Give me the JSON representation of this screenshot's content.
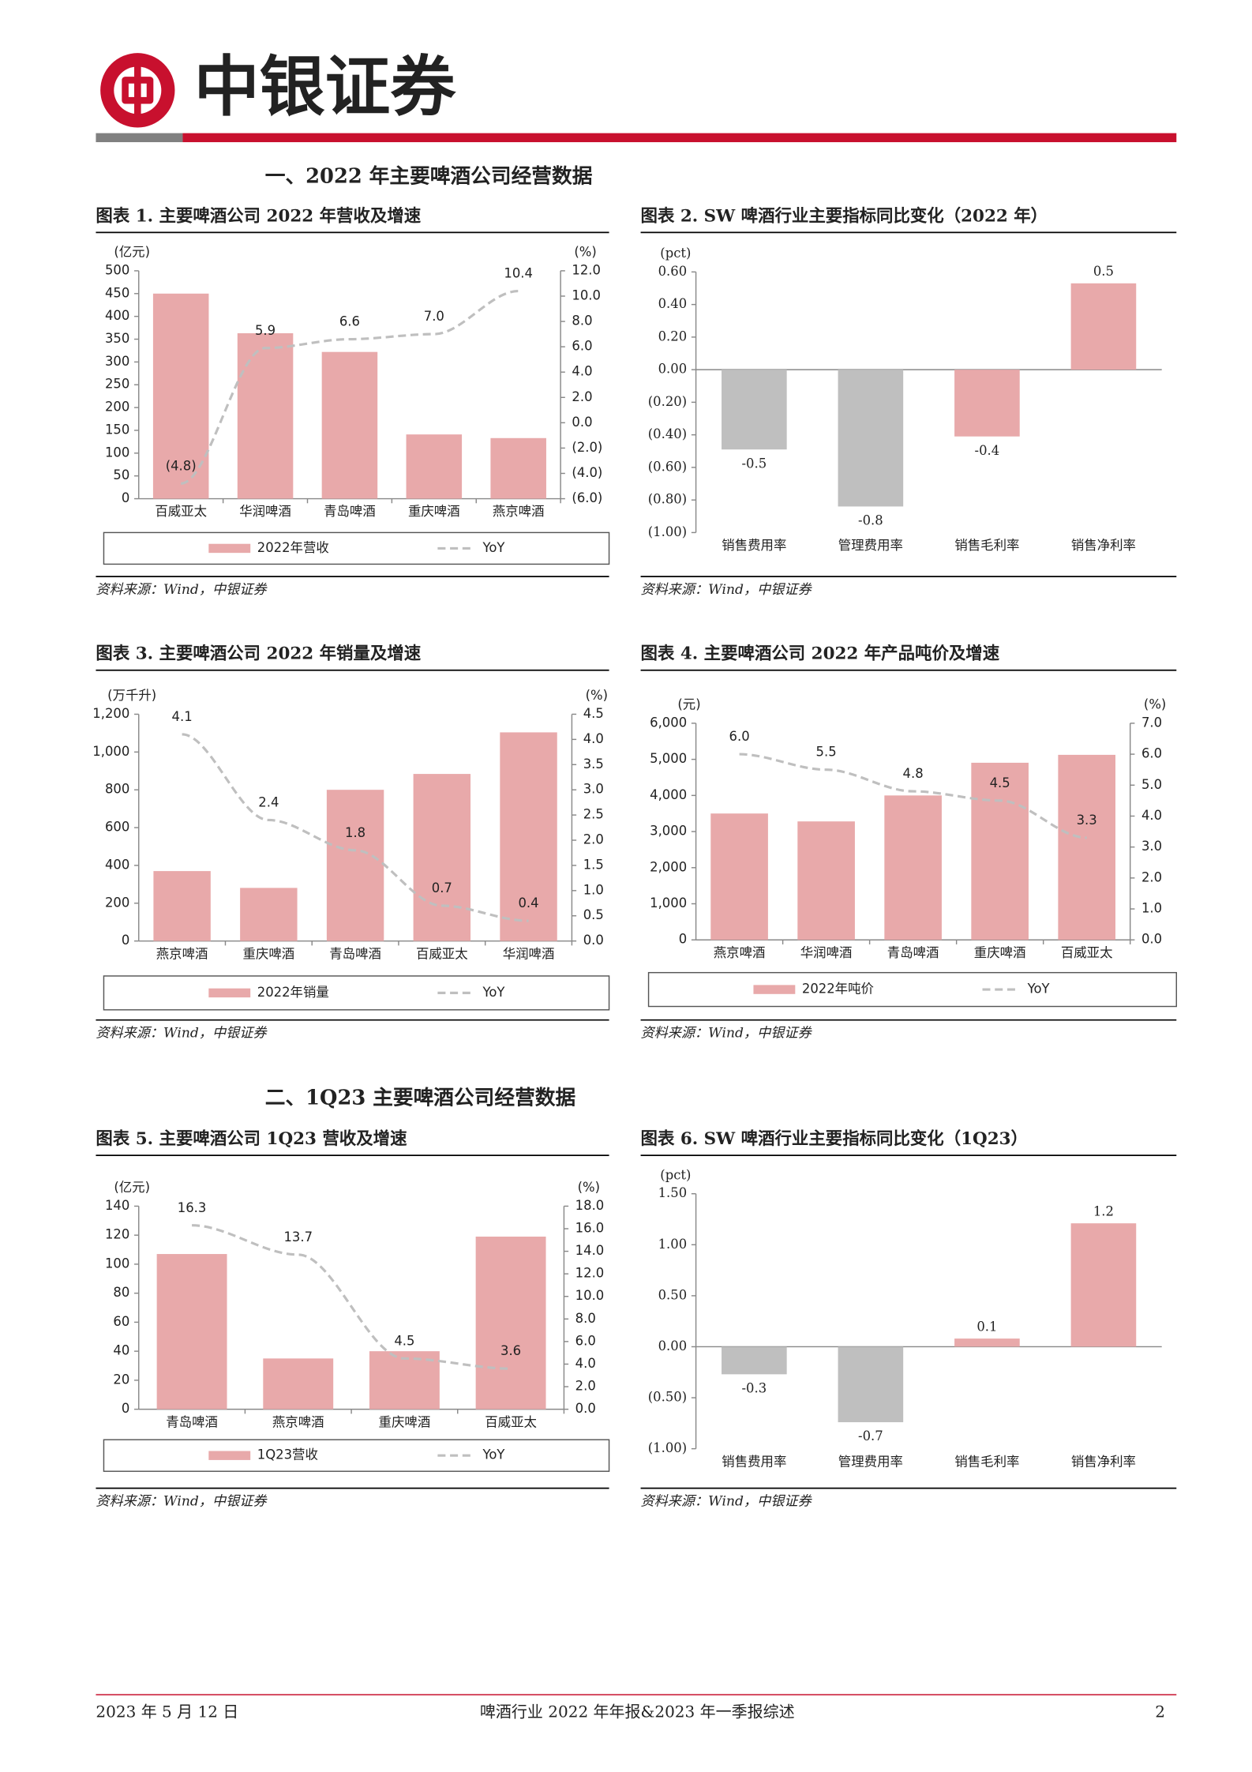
{
  "header": {
    "logo_text": "中银证券"
  },
  "sections": [
    "一、2022 年主要啤酒公司经营数据",
    "二、1Q23 主要啤酒公司经营数据"
  ],
  "footer": {
    "date": "2023 年 5 月 12 日",
    "report": "啤酒行业 2022 年年报&2023 年一季报综述",
    "page": "2"
  },
  "chart_data": [
    {
      "type": "combo",
      "title": "图表 1. 主要啤酒公司 2022 年营收及增速",
      "source": "资料来源：Wind，中银证券",
      "ylabel": "(亿元)",
      "y2label": "(%)",
      "categories": [
        "百威亚太",
        "华润啤酒",
        "青岛啤酒",
        "重庆啤酒",
        "燕京啤酒"
      ],
      "series": [
        {
          "name": "2022年营收",
          "color": "#e8a9aa",
          "values": [
            450,
            363,
            322,
            141,
            133
          ]
        },
        {
          "name": "YoY",
          "color": "#bfbfbf",
          "axis": "y2",
          "values": [
            -4.8,
            5.9,
            6.6,
            7.0,
            10.4
          ],
          "value_labels": [
            "(4.8)",
            "5.9",
            "6.6",
            "7.0",
            "10.4"
          ]
        }
      ],
      "ylim": [
        0,
        500
      ],
      "yticks": [
        0,
        50,
        100,
        150,
        200,
        250,
        300,
        350,
        400,
        450,
        500
      ],
      "y2lim": [
        -6,
        12
      ],
      "y2ticks": [
        {
          "value": -6,
          "label": "(6.0)"
        },
        {
          "value": -4,
          "label": "(4.0)"
        },
        {
          "value": -2,
          "label": "(2.0)"
        },
        {
          "value": 0,
          "label": "0.0"
        },
        {
          "value": 2,
          "label": "2.0"
        },
        {
          "value": 4,
          "label": "4.0"
        },
        {
          "value": 6,
          "label": "6.0"
        },
        {
          "value": 8,
          "label": "8.0"
        },
        {
          "value": 10,
          "label": "10.0"
        },
        {
          "value": 12,
          "label": "12.0"
        }
      ]
    },
    {
      "type": "bar",
      "title": "图表 2. SW 啤酒行业主要指标同比变化（2022 年）",
      "source": "资料来源：Wind，中银证券",
      "ylabel": "(pct)",
      "categories": [
        "销售费用率",
        "管理费用率",
        "销售毛利率",
        "销售净利率"
      ],
      "values": [
        -0.49,
        -0.84,
        -0.41,
        0.53
      ],
      "value_labels": [
        "-0.5",
        "-0.8",
        "-0.4",
        "0.5"
      ],
      "colors": [
        "#bfbfbf",
        "#bfbfbf",
        "#e8a9aa",
        "#e8a9aa"
      ],
      "ylim": [
        -1,
        0.6
      ],
      "yticks": [
        {
          "value": 0.6,
          "label": "0.60"
        },
        {
          "value": 0.4,
          "label": "0.40"
        },
        {
          "value": 0.2,
          "label": "0.20"
        },
        {
          "value": 0,
          "label": "0.00"
        },
        {
          "value": -0.2,
          "label": "(0.20)"
        },
        {
          "value": -0.4,
          "label": "(0.40)"
        },
        {
          "value": -0.6,
          "label": "(0.60)"
        },
        {
          "value": -0.8,
          "label": "(0.80)"
        },
        {
          "value": -1,
          "label": "(1.00)"
        }
      ]
    },
    {
      "type": "combo",
      "title": "图表 3. 主要啤酒公司 2022 年销量及增速",
      "source": "资料来源：Wind，中银证券",
      "ylabel": "(万千升)",
      "y2label": "(%)",
      "categories": [
        "燕京啤酒",
        "重庆啤酒",
        "青岛啤酒",
        "百威亚太",
        "华润啤酒"
      ],
      "series": [
        {
          "name": "2022年销量",
          "color": "#e8a9aa",
          "values": [
            370,
            281,
            800,
            884,
            1104
          ]
        },
        {
          "name": "YoY",
          "color": "#bfbfbf",
          "axis": "y2",
          "values": [
            4.1,
            2.4,
            1.8,
            0.7,
            0.4
          ]
        }
      ],
      "ylim": [
        0,
        1200
      ],
      "yticks": [
        0,
        200,
        400,
        600,
        800,
        {
          "value": 1000,
          "label": "1,000"
        },
        {
          "value": 1200,
          "label": "1,200"
        }
      ],
      "y2lim": [
        0,
        4.5
      ],
      "y2ticks": [
        {
          "value": 0,
          "label": "0.0"
        },
        0.5,
        {
          "value": 1,
          "label": "1.0"
        },
        1.5,
        {
          "value": 2,
          "label": "2.0"
        },
        2.5,
        {
          "value": 3,
          "label": "3.0"
        },
        3.5,
        {
          "value": 4,
          "label": "4.0"
        },
        4.5
      ]
    },
    {
      "type": "combo",
      "title": "图表 4. 主要啤酒公司 2022 年产品吨价及增速",
      "source": "资料来源：Wind，中银证券",
      "ylabel": "(元)",
      "y2label": "(%)",
      "categories": [
        "燕京啤酒",
        "华润啤酒",
        "青岛啤酒",
        "重庆啤酒",
        "百威亚太"
      ],
      "series": [
        {
          "name": "2022年吨价",
          "color": "#e8a9aa",
          "values": [
            3500,
            3281,
            4000,
            4906,
            5125
          ]
        },
        {
          "name": "YoY",
          "color": "#bfbfbf",
          "axis": "y2",
          "values": [
            6.0,
            5.5,
            4.8,
            4.5,
            3.3
          ],
          "value_labels": [
            "6.0",
            "5.5",
            "4.8",
            "4.5",
            "3.3"
          ]
        }
      ],
      "ylim": [
        0,
        6000
      ],
      "yticks": [
        0,
        {
          "value": 1000,
          "label": "1,000"
        },
        {
          "value": 2000,
          "label": "2,000"
        },
        {
          "value": 3000,
          "label": "3,000"
        },
        {
          "value": 4000,
          "label": "4,000"
        },
        {
          "value": 5000,
          "label": "5,000"
        },
        {
          "value": 6000,
          "label": "6,000"
        }
      ],
      "y2lim": [
        0,
        7
      ],
      "y2ticks": [
        {
          "value": 0,
          "label": "0.0"
        },
        {
          "value": 1,
          "label": "1.0"
        },
        {
          "value": 2,
          "label": "2.0"
        },
        {
          "value": 3,
          "label": "3.0"
        },
        {
          "value": 4,
          "label": "4.0"
        },
        {
          "value": 5,
          "label": "5.0"
        },
        {
          "value": 6,
          "label": "6.0"
        },
        {
          "value": 7,
          "label": "7.0"
        }
      ]
    },
    {
      "type": "combo",
      "title": "图表 5. 主要啤酒公司 1Q23 营收及增速",
      "source": "资料来源：Wind，中银证券",
      "ylabel": "(亿元)",
      "y2label": "(%)",
      "categories": [
        "青岛啤酒",
        "燕京啤酒",
        "重庆啤酒",
        "百威亚太"
      ],
      "series": [
        {
          "name": "1Q23营收",
          "color": "#e8a9aa",
          "values": [
            107,
            35,
            40,
            119
          ]
        },
        {
          "name": "YoY",
          "color": "#bfbfbf",
          "axis": "y2",
          "values": [
            16.3,
            13.7,
            4.5,
            3.6
          ]
        }
      ],
      "ylim": [
        0,
        140
      ],
      "yticks": [
        0,
        20,
        40,
        60,
        80,
        100,
        120,
        140
      ],
      "y2lim": [
        0,
        18
      ],
      "y2ticks": [
        {
          "value": 0,
          "label": "0.0"
        },
        {
          "value": 2,
          "label": "2.0"
        },
        {
          "value": 4,
          "label": "4.0"
        },
        {
          "value": 6,
          "label": "6.0"
        },
        {
          "value": 8,
          "label": "8.0"
        },
        {
          "value": 10,
          "label": "10.0"
        },
        {
          "value": 12,
          "label": "12.0"
        },
        {
          "value": 14,
          "label": "14.0"
        },
        {
          "value": 16,
          "label": "16.0"
        },
        {
          "value": 18,
          "label": "18.0"
        }
      ]
    },
    {
      "type": "bar",
      "title": "图表 6. SW 啤酒行业主要指标同比变化（1Q23）",
      "source": "资料来源：Wind，中银证券",
      "ylabel": "(pct)",
      "categories": [
        "销售费用率",
        "管理费用率",
        "销售毛利率",
        "销售净利率"
      ],
      "values": [
        -0.27,
        -0.74,
        0.08,
        1.21
      ],
      "value_labels": [
        "-0.3",
        "-0.7",
        "0.1",
        "1.2"
      ],
      "colors": [
        "#bfbfbf",
        "#bfbfbf",
        "#e8a9aa",
        "#e8a9aa"
      ],
      "ylim": [
        -1,
        1.5
      ],
      "yticks": [
        {
          "value": 1.5,
          "label": "1.50"
        },
        {
          "value": 1,
          "label": "1.00"
        },
        {
          "value": 0.5,
          "label": "0.50"
        },
        {
          "value": 0,
          "label": "0.00"
        },
        {
          "value": -0.5,
          "label": "(0.50)"
        },
        {
          "value": -1,
          "label": "(1.00)"
        }
      ]
    }
  ]
}
